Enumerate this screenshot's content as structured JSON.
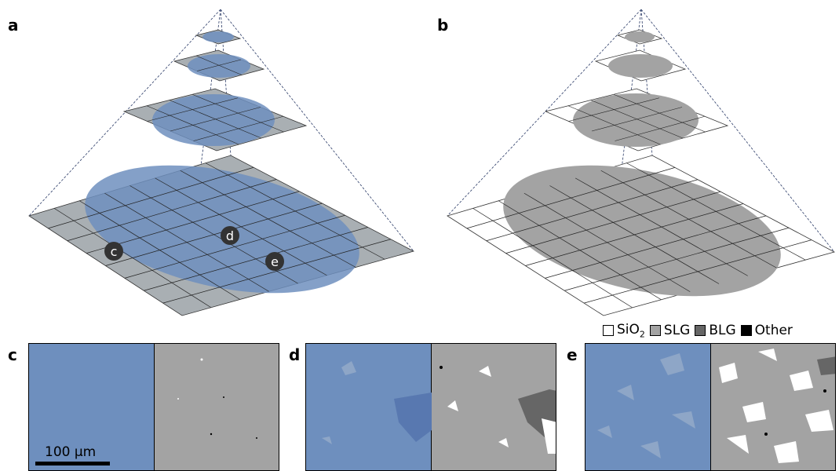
{
  "panels": {
    "a": "a",
    "b": "b",
    "c": "c",
    "d": "d",
    "e": "e"
  },
  "markers": {
    "c": "c",
    "d": "d",
    "e": "e"
  },
  "legend": {
    "sio2_prefix": "SiO",
    "sio2_sub": "2",
    "slg": "SLG",
    "blg": "BLG",
    "other": "Other"
  },
  "scalebar": {
    "label": "100 µm"
  },
  "colors": {
    "optical": "#6e8fbe",
    "optical_light": "#8ea6c7",
    "grid_gray": "#a9afb3",
    "sio2": "#ffffff",
    "slg": "#a3a3a3",
    "blg": "#666666",
    "other": "#000000"
  }
}
